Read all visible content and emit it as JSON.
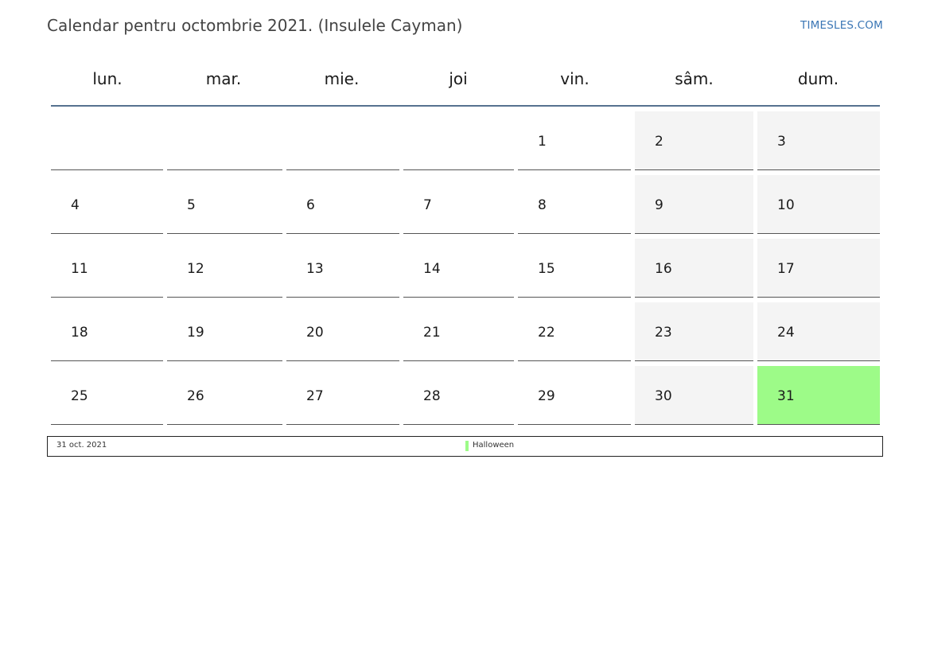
{
  "page": {
    "title": "Calendar pentru octombrie 2021. (Insulele Cayman)",
    "site_link": "TIMESLES.COM"
  },
  "calendar": {
    "weekdays": [
      "lun.",
      "mar.",
      "mie.",
      "joi",
      "vin.",
      "sâm.",
      "dum."
    ],
    "weeks": [
      [
        "",
        "",
        "",
        "",
        "1",
        "2",
        "3"
      ],
      [
        "4",
        "5",
        "6",
        "7",
        "8",
        "9",
        "10"
      ],
      [
        "11",
        "12",
        "13",
        "14",
        "15",
        "16",
        "17"
      ],
      [
        "18",
        "19",
        "20",
        "21",
        "22",
        "23",
        "24"
      ],
      [
        "25",
        "26",
        "27",
        "28",
        "29",
        "30",
        "31"
      ]
    ],
    "weekend_columns": [
      5,
      6
    ],
    "holidays": [
      "31"
    ]
  },
  "legend": {
    "date": "31 oct. 2021",
    "name": "Halloween",
    "color": "#9dfb88"
  },
  "colors": {
    "header_rule": "#56718f",
    "weekend_bg": "#f4f4f4",
    "holiday_bg": "#9dfb88",
    "link": "#3a76b5"
  }
}
